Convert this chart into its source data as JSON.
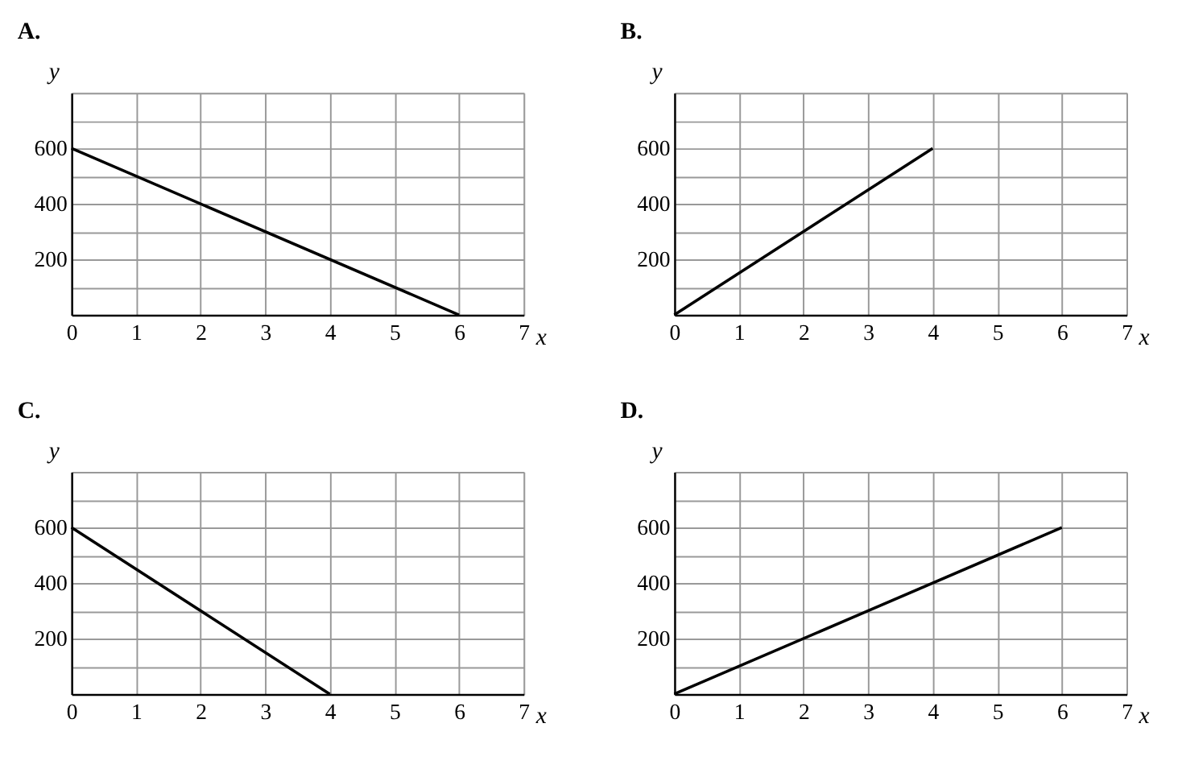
{
  "chart_data": [
    {
      "type": "line",
      "title": "A.",
      "xlabel": "x",
      "ylabel": "y",
      "x": [
        0,
        6
      ],
      "series": [
        {
          "color": "#000000",
          "values": [
            600,
            0
          ]
        }
      ],
      "xlim": [
        0,
        7
      ],
      "ylim": [
        0,
        800
      ],
      "xticks": [
        0,
        1,
        2,
        3,
        4,
        5,
        6,
        7
      ],
      "yticks": [
        {
          "value": 100,
          "label": null
        },
        200,
        {
          "value": 300,
          "label": null
        },
        400,
        {
          "value": 500,
          "label": null
        },
        600,
        {
          "value": 700,
          "label": null
        },
        {
          "value": 800,
          "label": null
        }
      ],
      "grid": true
    },
    {
      "type": "line",
      "title": "B.",
      "xlabel": "x",
      "ylabel": "y",
      "x": [
        0,
        4
      ],
      "series": [
        {
          "color": "#000000",
          "values": [
            0,
            600
          ]
        }
      ],
      "xlim": [
        0,
        7
      ],
      "ylim": [
        0,
        800
      ],
      "xticks": [
        0,
        1,
        2,
        3,
        4,
        5,
        6,
        7
      ],
      "yticks": [
        {
          "value": 100,
          "label": null
        },
        200,
        {
          "value": 300,
          "label": null
        },
        400,
        {
          "value": 500,
          "label": null
        },
        600,
        {
          "value": 700,
          "label": null
        },
        {
          "value": 800,
          "label": null
        }
      ],
      "grid": true
    },
    {
      "type": "line",
      "title": "C.",
      "xlabel": "x",
      "ylabel": "y",
      "x": [
        0,
        4
      ],
      "series": [
        {
          "color": "#000000",
          "values": [
            600,
            0
          ]
        }
      ],
      "xlim": [
        0,
        7
      ],
      "ylim": [
        0,
        800
      ],
      "xticks": [
        0,
        1,
        2,
        3,
        4,
        5,
        6,
        7
      ],
      "yticks": [
        {
          "value": 100,
          "label": null
        },
        200,
        {
          "value": 300,
          "label": null
        },
        400,
        {
          "value": 500,
          "label": null
        },
        600,
        {
          "value": 700,
          "label": null
        },
        {
          "value": 800,
          "label": null
        }
      ],
      "grid": true
    },
    {
      "type": "line",
      "title": "D.",
      "xlabel": "x",
      "ylabel": "y",
      "x": [
        0,
        6
      ],
      "series": [
        {
          "color": "#000000",
          "values": [
            0,
            600
          ]
        }
      ],
      "xlim": [
        0,
        7
      ],
      "ylim": [
        0,
        800
      ],
      "xticks": [
        0,
        1,
        2,
        3,
        4,
        5,
        6,
        7
      ],
      "yticks": [
        {
          "value": 100,
          "label": null
        },
        200,
        {
          "value": 300,
          "label": null
        },
        400,
        {
          "value": 500,
          "label": null
        },
        600,
        {
          "value": 700,
          "label": null
        },
        {
          "value": 800,
          "label": null
        }
      ],
      "grid": true
    }
  ]
}
